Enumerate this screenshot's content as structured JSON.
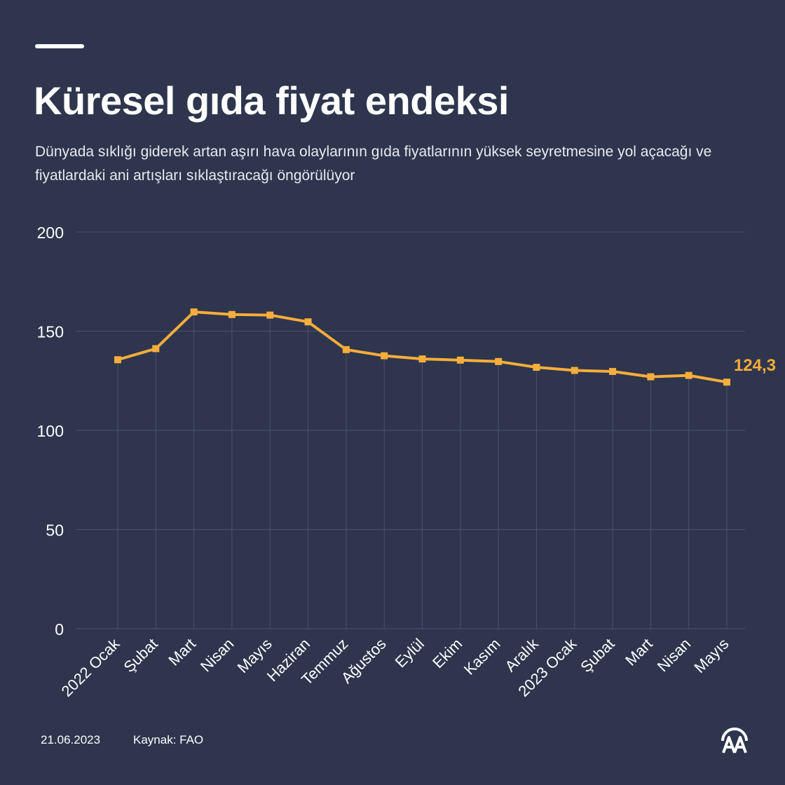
{
  "header": {
    "title": "Küresel gıda fiyat endeksi",
    "subtitle": "Dünyada sıklığı giderek artan aşırı hava olaylarının gıda fiyatlarının yüksek seyretmesine yol açacağı ve fiyatlardaki ani artışları sıklaştıracağı öngörülüyor"
  },
  "footer": {
    "date": "21.06.2023",
    "source": "Kaynak: FAO",
    "logo_icon": "aa-logo-icon"
  },
  "colors": {
    "background": "#2e354d",
    "line": "#f5ad3b",
    "grid": "#4a5270",
    "text": "#ffffff"
  },
  "chart_data": {
    "type": "line",
    "title": "Küresel gıda fiyat endeksi",
    "xlabel": "",
    "ylabel": "",
    "ylim": [
      0,
      200
    ],
    "yticks": [
      0,
      50,
      100,
      150,
      200
    ],
    "categories": [
      "2022 Ocak",
      "Şubat",
      "Mart",
      "Nisan",
      "Mayıs",
      "Haziran",
      "Temmuz",
      "Ağustos",
      "Eylül",
      "Ekim",
      "Kasım",
      "Aralık",
      "2023 Ocak",
      "Şubat",
      "Mart",
      "Nisan",
      "Mayıs"
    ],
    "series": [
      {
        "name": "Gıda fiyat endeksi",
        "values": [
          135.6,
          141.2,
          159.7,
          158.4,
          158.1,
          154.7,
          140.7,
          137.6,
          136.0,
          135.4,
          134.7,
          131.8,
          130.2,
          129.7,
          127.0,
          127.7,
          124.3
        ]
      }
    ],
    "annotations": [
      {
        "category": "Mayıs",
        "label": "124,3"
      }
    ],
    "grid": true
  }
}
